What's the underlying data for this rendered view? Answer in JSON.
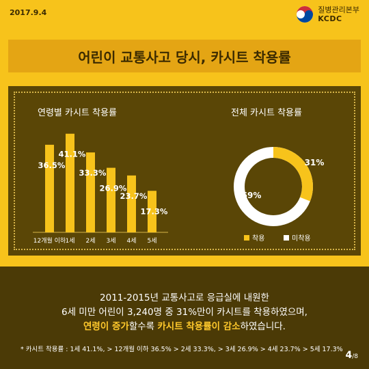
{
  "header": {
    "date": "2017.9.4",
    "org_name": "질병관리본부",
    "org_abbr": "KCDC"
  },
  "title": "어린이 교통사고 당시, 카시트 착용률",
  "colors": {
    "background": "#f7c31b",
    "panel": "#5a4606",
    "bar": "#f7c31b",
    "donut_worn": "#f7c31b",
    "donut_not_worn": "#ffffff",
    "highlight": "#ffc92c"
  },
  "chart_data": [
    {
      "type": "bar",
      "title": "연령별 카시트 착용률",
      "categories": [
        "12개월 이하",
        "1세",
        "2세",
        "3세",
        "4세",
        "5세"
      ],
      "values": [
        36.5,
        41.1,
        33.3,
        26.9,
        23.7,
        17.3
      ],
      "data_labels": [
        "36.5%",
        "41.1%",
        "33.3%",
        "26.9%",
        "23.7%",
        "17.3%"
      ],
      "ylim": [
        0,
        45
      ],
      "grid": false
    },
    {
      "type": "pie",
      "title": "전체 카시트 착용률",
      "labels": [
        "착용",
        "미착용"
      ],
      "values": [
        31,
        69
      ],
      "data_labels": [
        "31%",
        "69%"
      ],
      "legend_placement": "bottom"
    }
  ],
  "summary": {
    "line1": "2011-2015년 교통사고로 응급실에 내원한",
    "line2": "6세 미만 어린이 3,240명 중 31%만이 카시트를 착용하였으며,",
    "line3_a": "연령이 증가",
    "line3_b": "할수록 ",
    "line3_c": "카시트 착용률이 감소",
    "line3_d": "하였습니다."
  },
  "footnote": "* 카시트 착용률 : 1세 41.1%, > 12개월 이하 36.5% > 2세 33.3%, > 3세 26.9% > 4세 23.7% > 5세 17.3%",
  "page": {
    "current": "4",
    "total": "/8"
  }
}
